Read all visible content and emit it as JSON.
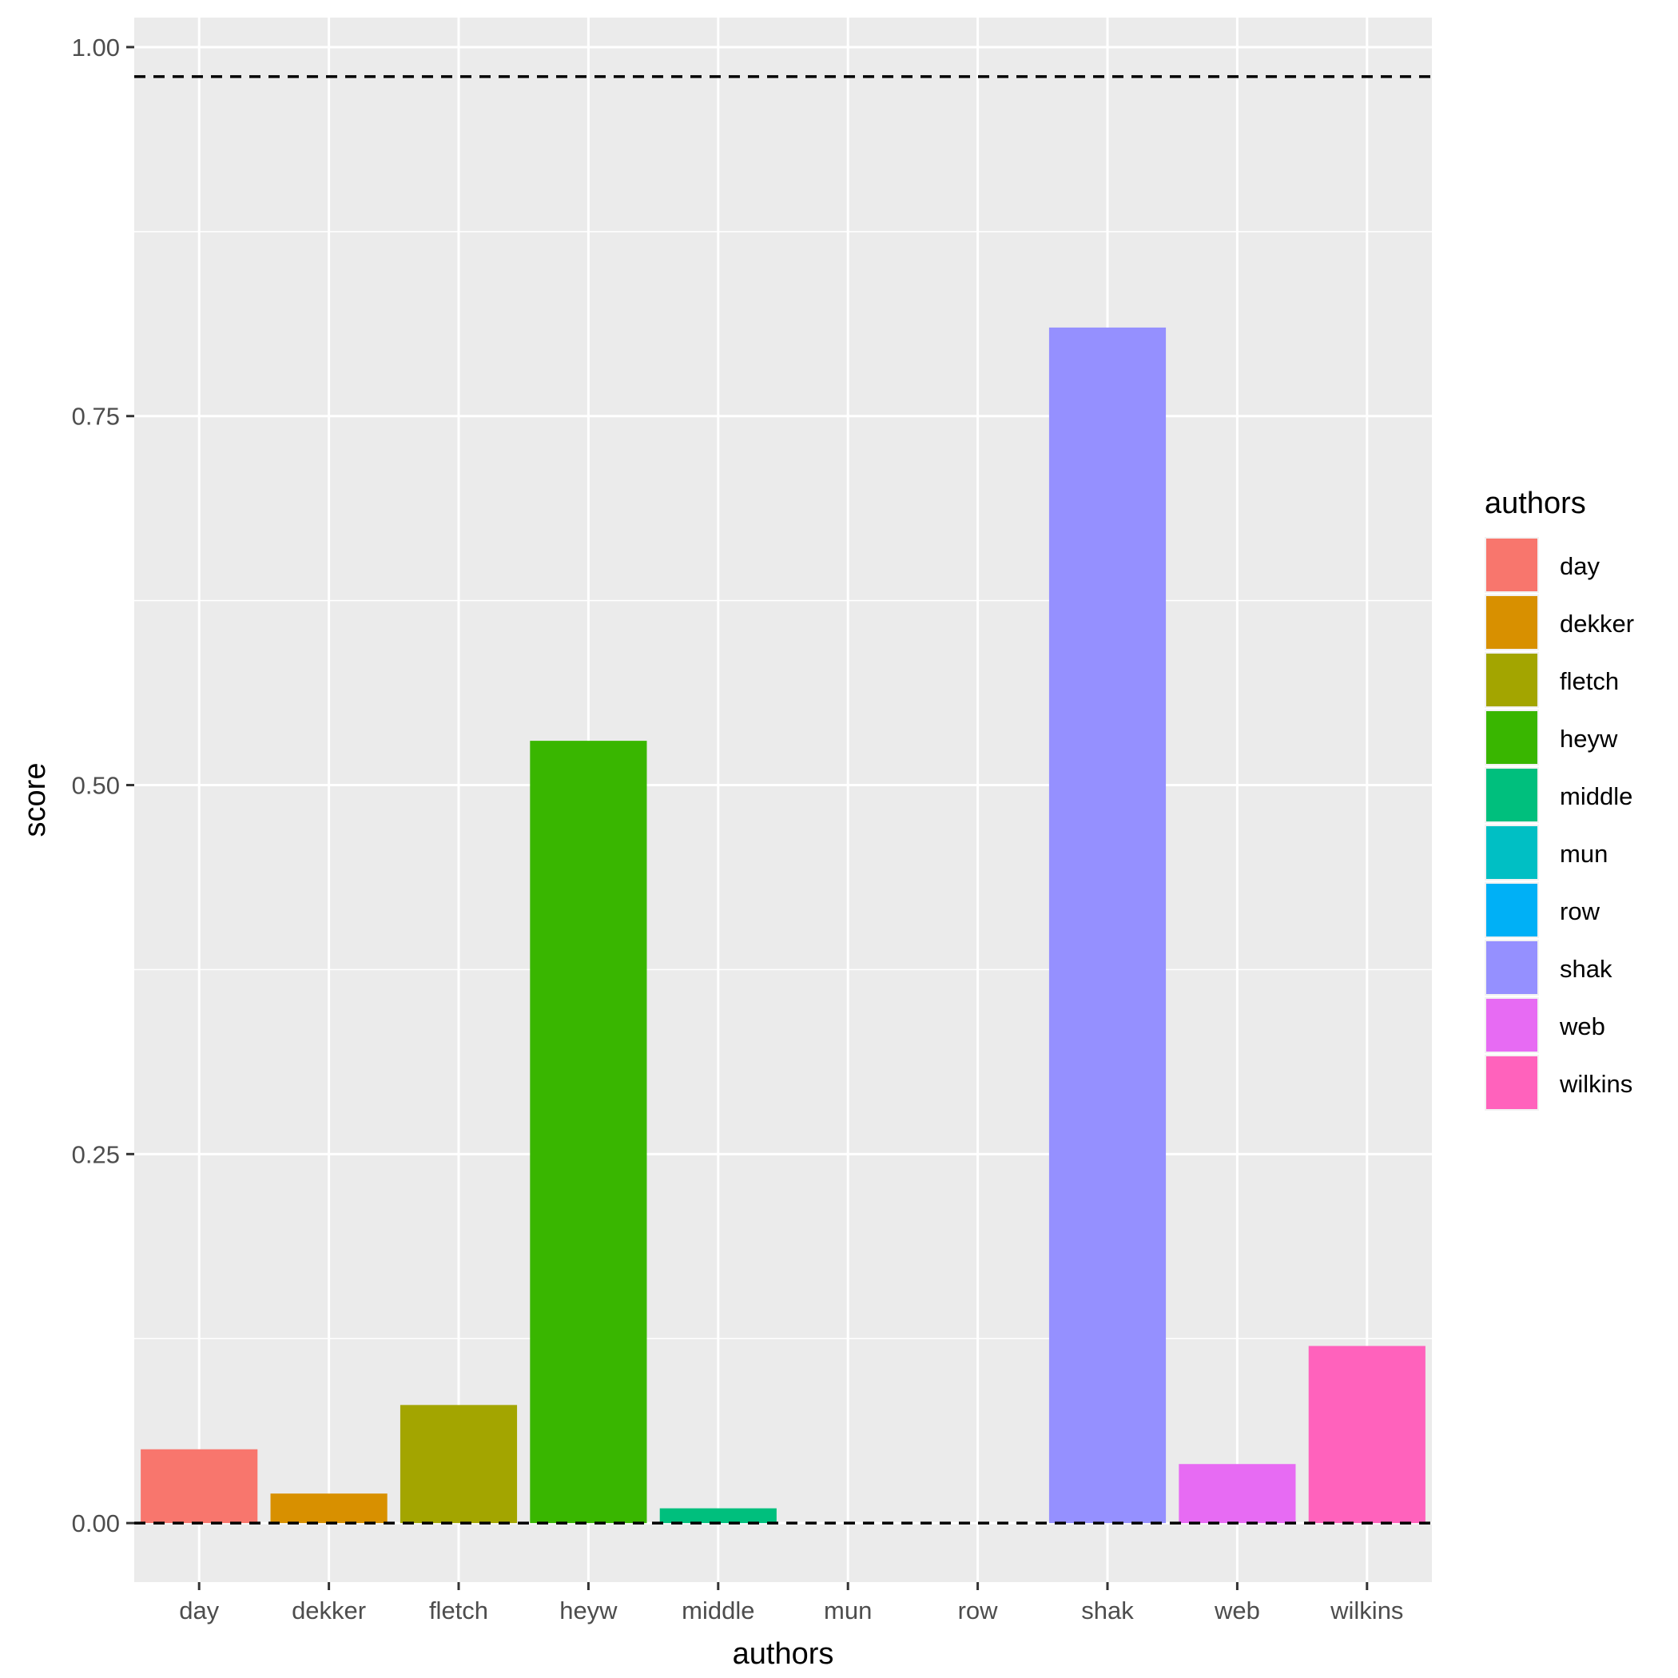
{
  "chart_data": {
    "type": "bar",
    "categories": [
      "day",
      "dekker",
      "fletch",
      "heyw",
      "middle",
      "mun",
      "row",
      "shak",
      "web",
      "wilkins"
    ],
    "values": [
      0.05,
      0.02,
      0.08,
      0.53,
      0.01,
      0.0,
      0.0,
      0.81,
      0.04,
      0.12
    ],
    "colors": [
      "#F8766D",
      "#D89000",
      "#A3A500",
      "#39B600",
      "#00BF7D",
      "#00BFC4",
      "#00B0F6",
      "#9590FF",
      "#E76BF3",
      "#FF62BC"
    ],
    "xlabel": "authors",
    "ylabel": "score",
    "ylim": [
      -0.04,
      1.02
    ],
    "yticks": [
      0.0,
      0.25,
      0.5,
      0.75,
      1.0
    ],
    "ytick_labels": [
      "0.00",
      "0.25",
      "0.50",
      "0.75",
      "1.00"
    ],
    "reference_lines": [
      {
        "y": 0.98,
        "style": "dashed"
      },
      {
        "y": 0.0,
        "style": "dashed"
      }
    ],
    "grid": true,
    "panel_background": "#EBEBEB",
    "legend": {
      "title": "authors",
      "position": "right",
      "items": [
        "day",
        "dekker",
        "fletch",
        "heyw",
        "middle",
        "mun",
        "row",
        "shak",
        "web",
        "wilkins"
      ]
    }
  }
}
